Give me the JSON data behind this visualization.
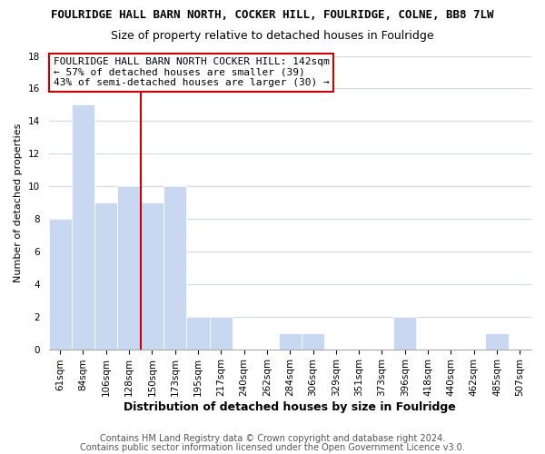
{
  "title": "FOULRIDGE HALL BARN NORTH, COCKER HILL, FOULRIDGE, COLNE, BB8 7LW",
  "subtitle": "Size of property relative to detached houses in Foulridge",
  "xlabel": "Distribution of detached houses by size in Foulridge",
  "ylabel": "Number of detached properties",
  "bin_labels": [
    "61sqm",
    "84sqm",
    "106sqm",
    "128sqm",
    "150sqm",
    "173sqm",
    "195sqm",
    "217sqm",
    "240sqm",
    "262sqm",
    "284sqm",
    "306sqm",
    "329sqm",
    "351sqm",
    "373sqm",
    "396sqm",
    "418sqm",
    "440sqm",
    "462sqm",
    "485sqm",
    "507sqm"
  ],
  "bar_heights": [
    8,
    15,
    9,
    10,
    9,
    10,
    2,
    2,
    0,
    0,
    1,
    1,
    0,
    0,
    0,
    2,
    0,
    0,
    0,
    1,
    0
  ],
  "bar_color": "#c8d8f0",
  "highlight_line_color": "#cc0000",
  "highlight_line_index": 3.5,
  "ylim": [
    0,
    18
  ],
  "yticks": [
    0,
    2,
    4,
    6,
    8,
    10,
    12,
    14,
    16,
    18
  ],
  "annotation_title": "FOULRIDGE HALL BARN NORTH COCKER HILL: 142sqm",
  "annotation_line1": "← 57% of detached houses are smaller (39)",
  "annotation_line2": "43% of semi-detached houses are larger (30) →",
  "footer_line1": "Contains HM Land Registry data © Crown copyright and database right 2024.",
  "footer_line2": "Contains public sector information licensed under the Open Government Licence v3.0.",
  "background_color": "#ffffff",
  "grid_color": "#d0d8e8",
  "title_fontsize": 9,
  "subtitle_fontsize": 9,
  "ylabel_fontsize": 8,
  "xlabel_fontsize": 9,
  "tick_fontsize": 7.5,
  "ann_fontsize": 8,
  "footer_fontsize": 7,
  "ann_box_color": "#cc0000"
}
